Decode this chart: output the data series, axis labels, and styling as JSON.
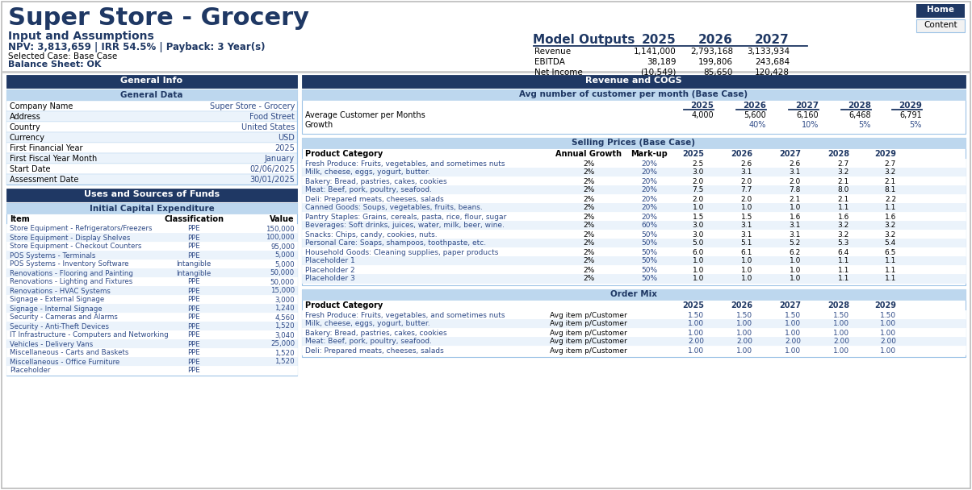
{
  "title": "Super Store - Grocery",
  "subtitle": "Input and Assumptions",
  "npv_line": "NPV: 3,813,659 | IRR 54.5% | Payback: 3 Year(s)",
  "selected_case": "Selected Case: Base Case",
  "balance_sheet": "Balance Sheet: OK",
  "nav_buttons": [
    "Home",
    "Content"
  ],
  "model_outputs": {
    "header": "Model Outputs",
    "years": [
      "2025",
      "2026",
      "2027"
    ],
    "rows": [
      {
        "label": "Revenue",
        "values": [
          "1,141,000",
          "2,793,168",
          "3,133,934"
        ]
      },
      {
        "label": "EBITDA",
        "values": [
          "38,189",
          "199,806",
          "243,684"
        ]
      },
      {
        "label": "Net Income",
        "values": [
          "(10,549)",
          "85,650",
          "120,428"
        ]
      }
    ]
  },
  "general_info_header": "General Info",
  "general_data_header": "General Data",
  "general_data_rows": [
    {
      "label": "Company Name",
      "value": "Super Store - Grocery"
    },
    {
      "label": "Address",
      "value": "Food Street"
    },
    {
      "label": "Country",
      "value": "United States"
    },
    {
      "label": "Currency",
      "value": "USD"
    },
    {
      "label": "First Financial Year",
      "value": "2025"
    },
    {
      "label": "First Fiscal Year Month",
      "value": "January"
    },
    {
      "label": "Start Date",
      "value": "02/06/2025"
    },
    {
      "label": "Assessment Date",
      "value": "30/01/2025"
    }
  ],
  "uses_sources_header": "Uses and Sources of Funds",
  "capex_header": "Initial Capital Expenditure",
  "capex_col_headers": [
    "Item",
    "Classification",
    "Value"
  ],
  "capex_rows": [
    [
      "Store Equipment - Refrigerators/Freezers",
      "PPE",
      "150,000"
    ],
    [
      "Store Equipment - Display Shelves",
      "PPE",
      "100,000"
    ],
    [
      "Store Equipment - Checkout Counters",
      "PPE",
      "95,000"
    ],
    [
      "POS Systems - Terminals",
      "PPE",
      "5,000"
    ],
    [
      "POS Systems - Inventory Software",
      "Intangible",
      "5,000"
    ],
    [
      "Renovations - Flooring and Painting",
      "Intangible",
      "50,000"
    ],
    [
      "Renovations - Lighting and Fixtures",
      "PPE",
      "50,000"
    ],
    [
      "Renovations - HVAC Systems",
      "PPE",
      "15,000"
    ],
    [
      "Signage - External Signage",
      "PPE",
      "3,000"
    ],
    [
      "Signage - Internal Signage",
      "PPE",
      "1,240"
    ],
    [
      "Security - Cameras and Alarms",
      "PPE",
      "4,560"
    ],
    [
      "Security - Anti-Theft Devices",
      "PPE",
      "1,520"
    ],
    [
      "IT Infrastructure - Computers and Networking",
      "PPE",
      "3,040"
    ],
    [
      "Vehicles - Delivery Vans",
      "PPE",
      "25,000"
    ],
    [
      "Miscellaneous - Carts and Baskets",
      "PPE",
      "1,520"
    ],
    [
      "Miscellaneous - Office Furniture",
      "PPE",
      "1,520"
    ],
    [
      "Placeholder",
      "PPE",
      ""
    ]
  ],
  "revenue_cogs_header": "Revenue and COGS",
  "avg_customer_header": "Avg number of customer per month (Base Case)",
  "avg_customer_years": [
    "2025",
    "2026",
    "2027",
    "2028",
    "2029"
  ],
  "avg_customer_rows": [
    {
      "label": "Average Customer per Months",
      "values": [
        "4,000",
        "5,600",
        "6,160",
        "6,468",
        "6,791"
      ]
    },
    {
      "label": "Growth",
      "values": [
        "",
        "40%",
        "10%",
        "5%",
        "5%"
      ]
    }
  ],
  "selling_prices_header": "Selling Prices (Base Case)",
  "sp_col_headers": [
    "Product Category",
    "Annual Growth",
    "Mark-up",
    "2025",
    "2026",
    "2027",
    "2028",
    "2029"
  ],
  "sp_rows": [
    [
      "Fresh Produce: Fruits, vegetables, and sometimes nuts",
      "2%",
      "20%",
      "2.5",
      "2.6",
      "2.6",
      "2.7",
      "2.7"
    ],
    [
      "Milk, cheese, eggs, yogurt, butter.",
      "2%",
      "20%",
      "3.0",
      "3.1",
      "3.1",
      "3.2",
      "3.2"
    ],
    [
      "Bakery: Bread, pastries, cakes, cookies",
      "2%",
      "20%",
      "2.0",
      "2.0",
      "2.0",
      "2.1",
      "2.1"
    ],
    [
      "Meat: Beef, pork, poultry, seafood.",
      "2%",
      "20%",
      "7.5",
      "7.7",
      "7.8",
      "8.0",
      "8.1"
    ],
    [
      "Deli: Prepared meats, cheeses, salads",
      "2%",
      "20%",
      "2.0",
      "2.0",
      "2.1",
      "2.1",
      "2.2"
    ],
    [
      "Canned Goods: Soups, vegetables, fruits, beans.",
      "2%",
      "20%",
      "1.0",
      "1.0",
      "1.0",
      "1.1",
      "1.1"
    ],
    [
      "Pantry Staples: Grains, cereals, pasta, rice, flour, sugar",
      "2%",
      "20%",
      "1.5",
      "1.5",
      "1.6",
      "1.6",
      "1.6"
    ],
    [
      "Beverages: Soft drinks, juices, water, milk, beer, wine.",
      "2%",
      "60%",
      "3.0",
      "3.1",
      "3.1",
      "3.2",
      "3.2"
    ],
    [
      "Snacks: Chips, candy, cookies, nuts.",
      "2%",
      "50%",
      "3.0",
      "3.1",
      "3.1",
      "3.2",
      "3.2"
    ],
    [
      "Personal Care: Soaps, shampoos, toothpaste, etc.",
      "2%",
      "50%",
      "5.0",
      "5.1",
      "5.2",
      "5.3",
      "5.4"
    ],
    [
      "Household Goods: Cleaning supplies, paper products",
      "2%",
      "50%",
      "6.0",
      "6.1",
      "6.2",
      "6.4",
      "6.5"
    ],
    [
      "Placeholder 1",
      "2%",
      "50%",
      "1.0",
      "1.0",
      "1.0",
      "1.1",
      "1.1"
    ],
    [
      "Placeholder 2",
      "2%",
      "50%",
      "1.0",
      "1.0",
      "1.0",
      "1.1",
      "1.1"
    ],
    [
      "Placeholder 3",
      "2%",
      "50%",
      "1.0",
      "1.0",
      "1.0",
      "1.1",
      "1.1"
    ]
  ],
  "order_mix_header": "Order Mix",
  "om_col_headers": [
    "Product Category",
    "2025",
    "2026",
    "2027",
    "2028",
    "2029"
  ],
  "om_rows": [
    [
      "Fresh Produce: Fruits, vegetables, and sometimes nuts",
      "Avg item p/Customer",
      "1.50",
      "1.50",
      "1.50",
      "1.50",
      "1.50"
    ],
    [
      "Milk, cheese, eggs, yogurt, butter.",
      "Avg item p/Customer",
      "1.00",
      "1.00",
      "1.00",
      "1.00",
      "1.00"
    ],
    [
      "Bakery: Bread, pastries, cakes, cookies",
      "Avg item p/Customer",
      "1.00",
      "1.00",
      "1.00",
      "1.00",
      "1.00"
    ],
    [
      "Meat: Beef, pork, poultry, seafood.",
      "Avg item p/Customer",
      "2.00",
      "2.00",
      "2.00",
      "2.00",
      "2.00"
    ],
    [
      "Deli: Prepared meats, cheeses, salads",
      "Avg item p/Customer",
      "1.00",
      "1.00",
      "1.00",
      "1.00",
      "1.00"
    ]
  ],
  "colors": {
    "dark_navy": "#1F3864",
    "light_blue_header": "#BDD7EE",
    "blue_text": "#2E4A87",
    "white": "#FFFFFF",
    "black": "#000000",
    "light_gray": "#F2F2F2",
    "border_blue": "#9DC3E6",
    "very_light_blue": "#EBF3FB",
    "outer_border": "#BBBBBB"
  }
}
